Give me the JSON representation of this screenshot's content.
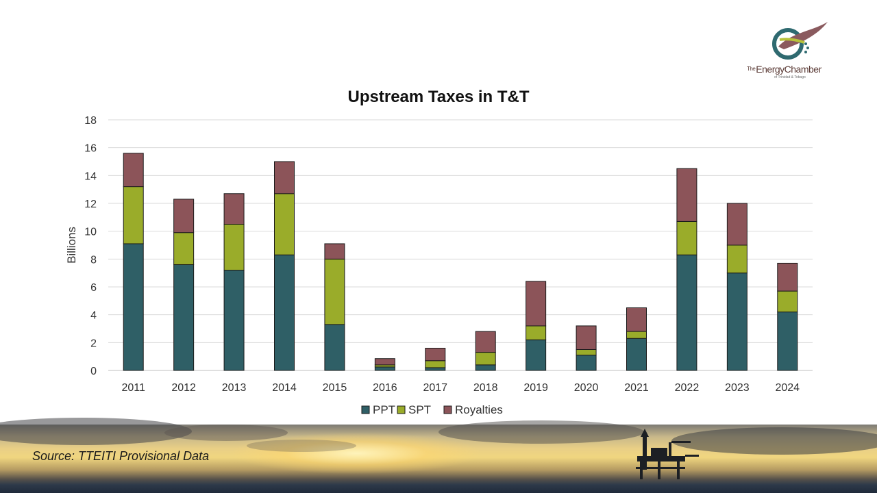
{
  "logo": {
    "line1_small": "The",
    "line1_main": "EnergyChamber",
    "line2": "of Trinidad & Tobago"
  },
  "chart_data": {
    "type": "bar",
    "stacked": true,
    "title": "Upstream Taxes in T&T",
    "xlabel": "",
    "ylabel": "Billions",
    "ylim": [
      0,
      18
    ],
    "yticks": [
      0,
      2,
      4,
      6,
      8,
      10,
      12,
      14,
      16,
      18
    ],
    "grid": true,
    "legend_position": "bottom",
    "categories": [
      "2011",
      "2012",
      "2013",
      "2014",
      "2015",
      "2016",
      "2017",
      "2018",
      "2019",
      "2020",
      "2021",
      "2022",
      "2023",
      "2024"
    ],
    "series": [
      {
        "name": "PPT",
        "color": "#2f5f66",
        "values": [
          9.1,
          7.6,
          7.2,
          8.3,
          3.3,
          0.25,
          0.2,
          0.4,
          2.2,
          1.1,
          2.3,
          8.3,
          7.0,
          4.2
        ]
      },
      {
        "name": "SPT",
        "color": "#9aac2a",
        "values": [
          4.1,
          2.3,
          3.3,
          4.4,
          4.7,
          0.15,
          0.5,
          0.9,
          1.0,
          0.4,
          0.5,
          2.4,
          2.0,
          1.5
        ]
      },
      {
        "name": "Royalties",
        "color": "#8c5459",
        "values": [
          2.4,
          2.4,
          2.2,
          2.3,
          1.1,
          0.45,
          0.9,
          1.5,
          3.2,
          1.7,
          1.7,
          3.8,
          3.0,
          2.0
        ]
      }
    ]
  },
  "footer": {
    "source": "Source: TTEITI Provisional Data"
  }
}
